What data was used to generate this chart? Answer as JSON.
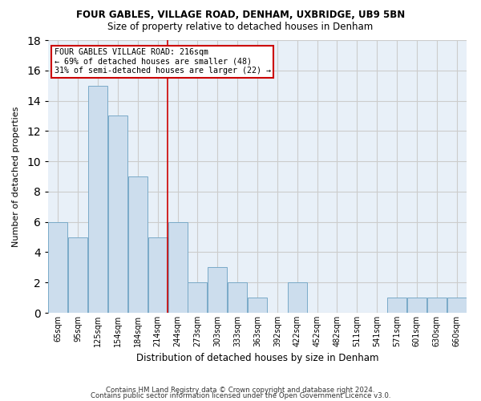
{
  "title1": "FOUR GABLES, VILLAGE ROAD, DENHAM, UXBRIDGE, UB9 5BN",
  "title2": "Size of property relative to detached houses in Denham",
  "xlabel": "Distribution of detached houses by size in Denham",
  "ylabel": "Number of detached properties",
  "categories": [
    "65sqm",
    "95sqm",
    "125sqm",
    "154sqm",
    "184sqm",
    "214sqm",
    "244sqm",
    "273sqm",
    "303sqm",
    "333sqm",
    "363sqm",
    "392sqm",
    "422sqm",
    "452sqm",
    "482sqm",
    "511sqm",
    "541sqm",
    "571sqm",
    "601sqm",
    "630sqm",
    "660sqm"
  ],
  "values": [
    6,
    5,
    15,
    13,
    9,
    5,
    6,
    2,
    3,
    2,
    1,
    0,
    2,
    0,
    0,
    0,
    0,
    1,
    1,
    1,
    1
  ],
  "bar_color": "#ccdded",
  "bar_edge_color": "#7aaac8",
  "vline_x": 5.5,
  "annotation_line1": "FOUR GABLES VILLAGE ROAD: 216sqm",
  "annotation_line2": "← 69% of detached houses are smaller (48)",
  "annotation_line3": "31% of semi-detached houses are larger (22) →",
  "annotation_box_color": "#ffffff",
  "annotation_box_edge": "#cc0000",
  "vline_color": "#cc0000",
  "ylim": [
    0,
    18
  ],
  "yticks": [
    0,
    2,
    4,
    6,
    8,
    10,
    12,
    14,
    16,
    18
  ],
  "grid_color": "#cccccc",
  "bg_color": "#e8f0f8",
  "footer1": "Contains HM Land Registry data © Crown copyright and database right 2024.",
  "footer2": "Contains public sector information licensed under the Open Government Licence v3.0."
}
